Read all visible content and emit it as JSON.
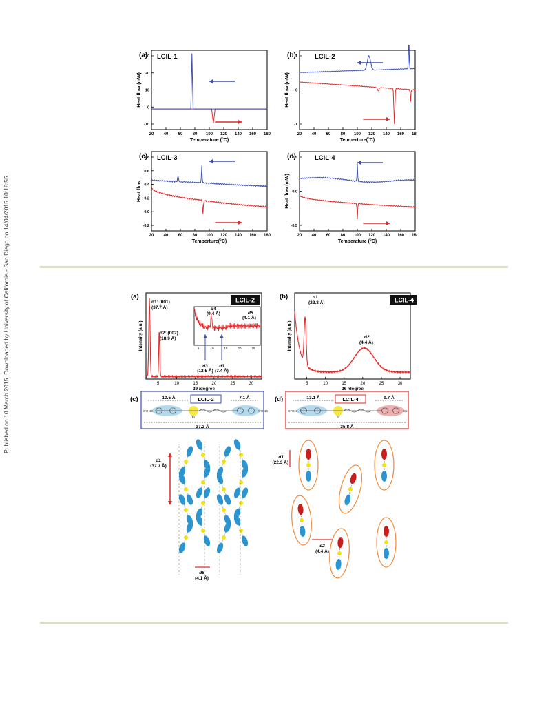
{
  "side_note": "Published on 10 March 2015. Downloaded by University of California - San Diego on 14/04/2015 10:18:55.",
  "colors": {
    "cool": "#3b4fb5",
    "heat": "#e3282a",
    "mol_blue": "#2c95cf",
    "mol_yellow": "#f2e213",
    "mol_red": "#c81e1e",
    "ellipse": "#ee8a3a",
    "rule": "#d9ddc6"
  },
  "dsc": [
    {
      "letter": "(a)",
      "name": "LCIL-1",
      "ylabel": "Heat flow (mW)",
      "xlabel": "Temperature (°C)",
      "xticks": [
        "20",
        "40",
        "60",
        "80",
        "100",
        "120",
        "140",
        "160",
        "180"
      ],
      "yticks": [
        "-10",
        "0",
        "10",
        "20",
        "30"
      ]
    },
    {
      "letter": "(b)",
      "name": "LCIL-2",
      "ylabel": "Heat flow (mW)",
      "xlabel": "Temperture(°C)",
      "xticks": [
        "20",
        "40",
        "60",
        "80",
        "100",
        "120",
        "140",
        "160",
        "180"
      ],
      "yticks": [
        "-1",
        "0",
        "1"
      ]
    },
    {
      "letter": "(c)",
      "name": "LCIL-3",
      "ylabel": "Heat flow",
      "xlabel": "Temperture(°C)",
      "xticks": [
        "20",
        "40",
        "60",
        "80",
        "100",
        "120",
        "140",
        "160",
        "180"
      ],
      "yticks": [
        "-0.2",
        "0.0",
        "0.2",
        "0.4",
        "0.6",
        "0.8"
      ]
    },
    {
      "letter": "(d)",
      "name": "LCIL-4",
      "ylabel": "Heat flow (mW)",
      "xlabel": "Temperature (°C)",
      "xticks": [
        "20",
        "40",
        "60",
        "80",
        "100",
        "120",
        "140",
        "160",
        "180"
      ],
      "yticks": [
        "-0.5",
        "0.0",
        "0.5"
      ]
    }
  ],
  "xrd": [
    {
      "letter": "(a)",
      "name": "LCIL-2",
      "ylabel": "Intensity (a.u.)",
      "xlabel": "2θ /degree",
      "xticks": [
        "5",
        "10",
        "15",
        "20",
        "25",
        "30"
      ],
      "labels": {
        "d1": "d1: (001)",
        "d1v": "(37.7 Å)",
        "d2": "d2: (002)",
        "d2v": "(18.9 Å)",
        "d4": "d4",
        "d4v": "(9.4 Å)",
        "d5": "d5",
        "d5v": "(4.1 Å)",
        "d3": "d3",
        "d3v": "(12.5 Å)",
        "d3b": "d3",
        "d3bv": "(7.4 Å)"
      },
      "inset_xticks": [
        "5",
        "10",
        "15",
        "20",
        "25"
      ]
    },
    {
      "letter": "(b)",
      "name": "LCIL-4",
      "ylabel": "Intensity (a.u.)",
      "xlabel": "2θ /degree",
      "xticks": [
        "5",
        "10",
        "15",
        "20",
        "25",
        "30"
      ],
      "labels": {
        "d1": "d1",
        "d1v": "(22.3 Å)",
        "d2": "d2",
        "d2v": "(4.4 Å)"
      }
    }
  ],
  "schemes": [
    {
      "letter": "(c)",
      "name": "LCIL-2",
      "left": "10.5 Å",
      "right": "7.1 Å",
      "total": "37.2 Å",
      "tail_l": "C7H15",
      "tail_r": "C7H15",
      "anion": "Br",
      "d1": "d1",
      "d1v": "(37.7 Å)",
      "d5": "d5",
      "d5v": "(4.1 Å)"
    },
    {
      "letter": "(d)",
      "name": "LCIL-4",
      "left": "13.1 Å",
      "right": "9.7 Å",
      "total": "35.8 Å",
      "tail_l": "C7H15",
      "tail_r": "CN",
      "anion": "Br",
      "d1": "d1",
      "d1v": "(22.3 Å)",
      "d2": "d2",
      "d2v": "(4.4 Å)"
    }
  ]
}
